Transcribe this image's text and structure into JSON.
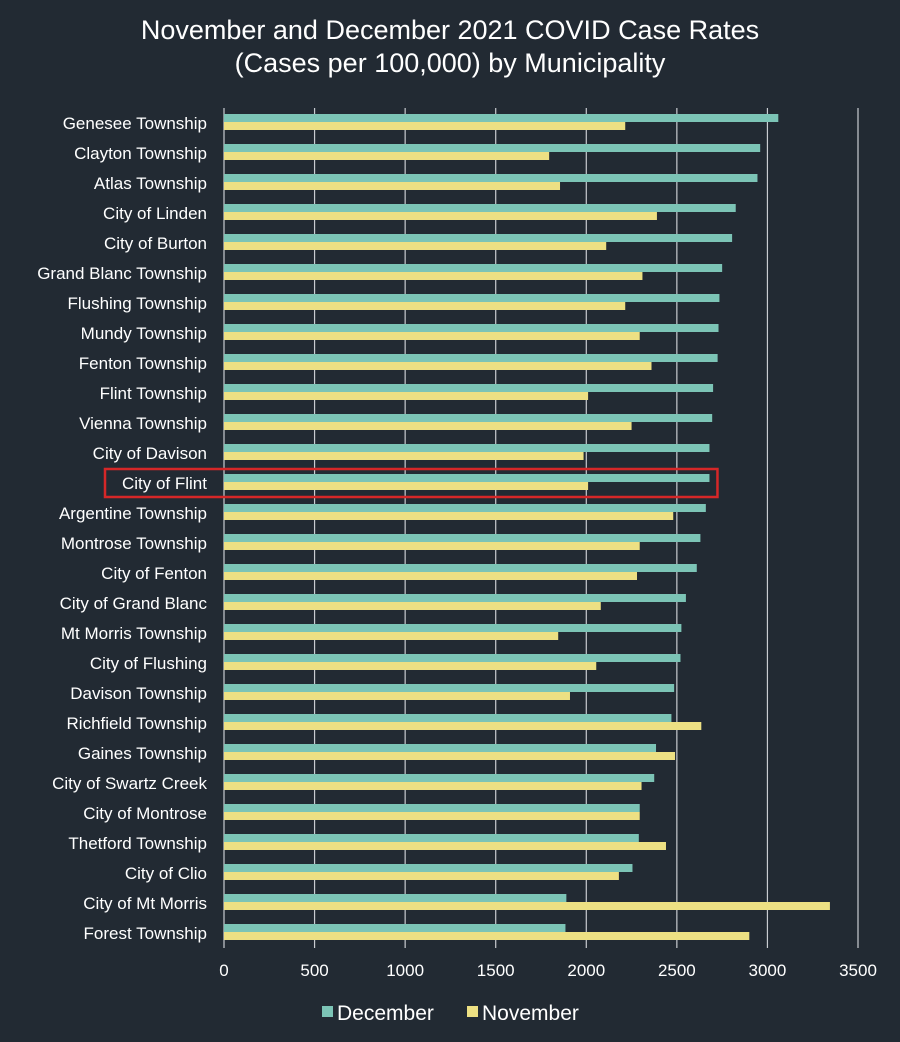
{
  "chart_data": {
    "type": "bar",
    "orientation": "horizontal",
    "title": "November and December 2021 COVID Case Rates (Cases per 100,000) by Municipality",
    "title_lines": [
      "November and December 2021 COVID Case Rates",
      "(Cases per 100,000) by Municipality"
    ],
    "xlabel": "",
    "ylabel": "",
    "xlim": [
      0,
      3500
    ],
    "x_ticks": [
      0,
      500,
      1000,
      1500,
      2000,
      2500,
      3000,
      3500
    ],
    "grid": true,
    "legend_position": "bottom",
    "highlighted_category": "City of Flint",
    "highlight_color": "#d62728",
    "categories": [
      "Genesee Township",
      "Clayton Township",
      "Atlas Township",
      "City of Linden",
      "City of Burton",
      "Grand Blanc Township",
      "Flushing Township",
      "Mundy Township",
      "Fenton Township",
      "Flint Township",
      "Vienna Township",
      "City of Davison",
      "City of Flint",
      "Argentine Township",
      "Montrose Township",
      "City of Fenton",
      "City of Grand Blanc",
      "Mt Morris Township",
      "City of Flushing",
      "Davison Township",
      "Richfield Township",
      "Gaines Township",
      "City of Swartz Creek",
      "City of Montrose",
      "Thetford Township",
      "City of Clio",
      "City of Mt Morris",
      "Forest Township"
    ],
    "series": [
      {
        "name": "December",
        "color": "#7cc4b6",
        "values": [
          3060,
          2960,
          2945,
          2825,
          2805,
          2750,
          2735,
          2730,
          2725,
          2700,
          2695,
          2680,
          2680,
          2660,
          2630,
          2610,
          2550,
          2525,
          2520,
          2485,
          2470,
          2385,
          2375,
          2295,
          2290,
          2255,
          1890,
          1885
        ]
      },
      {
        "name": "November",
        "color": "#ede083",
        "values": [
          2215,
          1795,
          1855,
          2390,
          2110,
          2310,
          2215,
          2295,
          2360,
          2010,
          2250,
          1985,
          2010,
          2480,
          2295,
          2280,
          2080,
          1845,
          2055,
          1910,
          2635,
          2490,
          2305,
          2295,
          2440,
          2180,
          3345,
          2900
        ]
      }
    ]
  },
  "colors": {
    "background": "#222a33",
    "gridline": "#c9ccd1",
    "text": "#ffffff"
  }
}
